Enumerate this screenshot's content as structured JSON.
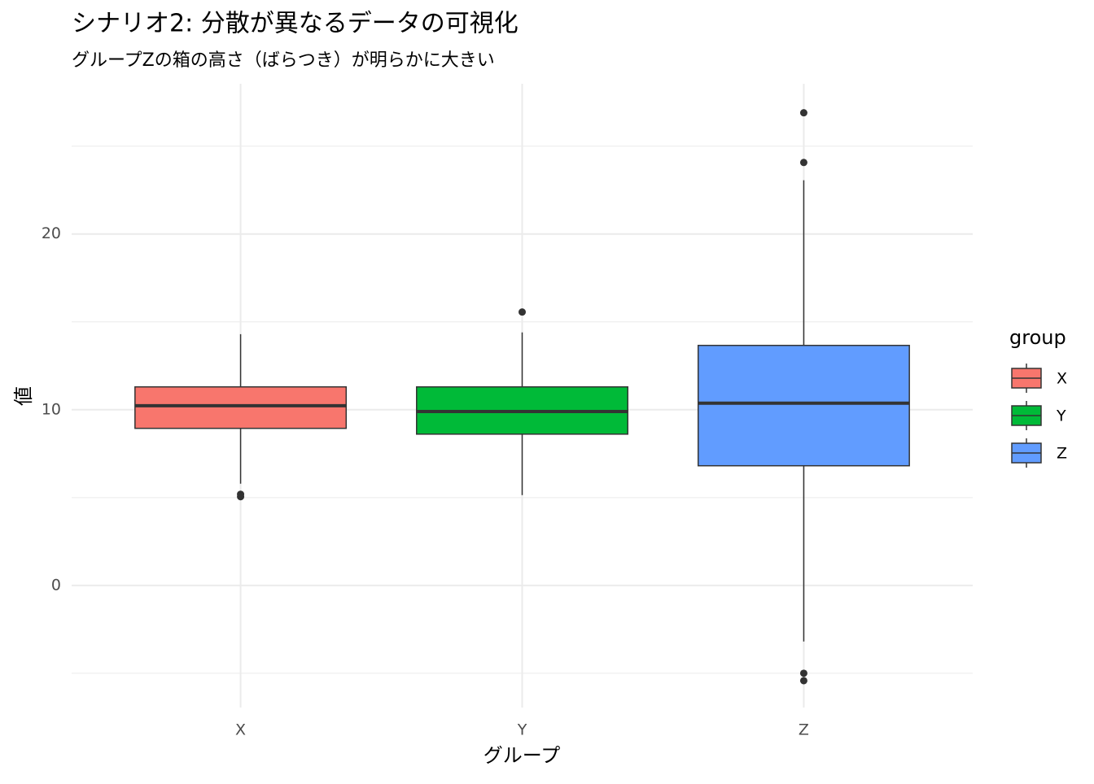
{
  "chart_data": {
    "type": "boxplot",
    "title": "シナリオ2: 分散が異なるデータの可視化",
    "subtitle": "グループZの箱の高さ（ばらつき）が明らかに大きい",
    "x_label": "グループ",
    "y_label": "値",
    "categories": [
      "X",
      "Y",
      "Z"
    ],
    "colors": [
      "#f8766d",
      "#00ba38",
      "#619cff"
    ],
    "boxes": [
      {
        "whislo": 5.79,
        "q1": 8.94,
        "med": 10.23,
        "q3": 11.3,
        "whishi": 14.3,
        "fliers": [
          5.19,
          5.05
        ]
      },
      {
        "whislo": 5.14,
        "q1": 8.61,
        "med": 9.9,
        "q3": 11.3,
        "whishi": 14.4,
        "fliers": [
          15.56
        ]
      },
      {
        "whislo": -3.19,
        "q1": 6.81,
        "med": 10.37,
        "q3": 13.66,
        "whishi": 23.06,
        "fliers": [
          26.9,
          24.07,
          -5.0,
          -5.42
        ]
      }
    ],
    "ylim": [
      -6.95,
      28.55
    ],
    "yticks": [
      0,
      10,
      20
    ],
    "minor_gridlines": [
      -5,
      5,
      15,
      25
    ],
    "grid": true,
    "legend": {
      "title": "group",
      "position": "right"
    }
  }
}
